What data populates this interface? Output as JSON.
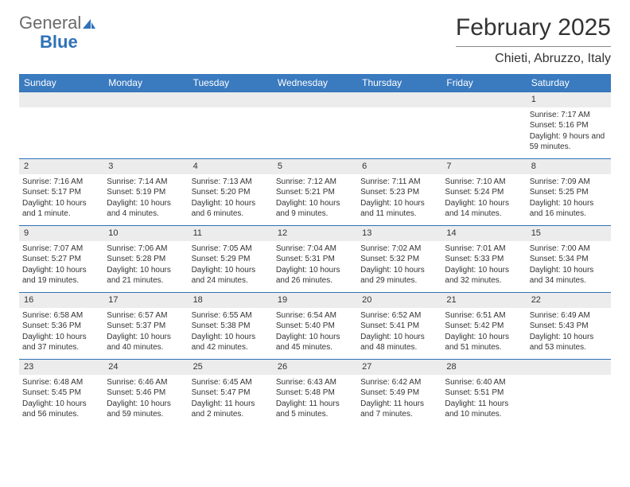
{
  "brand": {
    "word1": "General",
    "word2": "Blue"
  },
  "header": {
    "month_title": "February 2025",
    "location": "Chieti, Abruzzo, Italy"
  },
  "colors": {
    "header_bg": "#3a7abf",
    "header_text": "#ffffff",
    "day_stripe_bg": "#ececec",
    "row_divider": "#2f72b8",
    "logo_gray": "#6a6a6a",
    "logo_blue": "#2f72b8"
  },
  "weekdays": [
    "Sunday",
    "Monday",
    "Tuesday",
    "Wednesday",
    "Thursday",
    "Friday",
    "Saturday"
  ],
  "weeks": [
    [
      null,
      null,
      null,
      null,
      null,
      null,
      {
        "n": "1",
        "sunrise": "Sunrise: 7:17 AM",
        "sunset": "Sunset: 5:16 PM",
        "daylight": "Daylight: 9 hours and 59 minutes."
      }
    ],
    [
      {
        "n": "2",
        "sunrise": "Sunrise: 7:16 AM",
        "sunset": "Sunset: 5:17 PM",
        "daylight": "Daylight: 10 hours and 1 minute."
      },
      {
        "n": "3",
        "sunrise": "Sunrise: 7:14 AM",
        "sunset": "Sunset: 5:19 PM",
        "daylight": "Daylight: 10 hours and 4 minutes."
      },
      {
        "n": "4",
        "sunrise": "Sunrise: 7:13 AM",
        "sunset": "Sunset: 5:20 PM",
        "daylight": "Daylight: 10 hours and 6 minutes."
      },
      {
        "n": "5",
        "sunrise": "Sunrise: 7:12 AM",
        "sunset": "Sunset: 5:21 PM",
        "daylight": "Daylight: 10 hours and 9 minutes."
      },
      {
        "n": "6",
        "sunrise": "Sunrise: 7:11 AM",
        "sunset": "Sunset: 5:23 PM",
        "daylight": "Daylight: 10 hours and 11 minutes."
      },
      {
        "n": "7",
        "sunrise": "Sunrise: 7:10 AM",
        "sunset": "Sunset: 5:24 PM",
        "daylight": "Daylight: 10 hours and 14 minutes."
      },
      {
        "n": "8",
        "sunrise": "Sunrise: 7:09 AM",
        "sunset": "Sunset: 5:25 PM",
        "daylight": "Daylight: 10 hours and 16 minutes."
      }
    ],
    [
      {
        "n": "9",
        "sunrise": "Sunrise: 7:07 AM",
        "sunset": "Sunset: 5:27 PM",
        "daylight": "Daylight: 10 hours and 19 minutes."
      },
      {
        "n": "10",
        "sunrise": "Sunrise: 7:06 AM",
        "sunset": "Sunset: 5:28 PM",
        "daylight": "Daylight: 10 hours and 21 minutes."
      },
      {
        "n": "11",
        "sunrise": "Sunrise: 7:05 AM",
        "sunset": "Sunset: 5:29 PM",
        "daylight": "Daylight: 10 hours and 24 minutes."
      },
      {
        "n": "12",
        "sunrise": "Sunrise: 7:04 AM",
        "sunset": "Sunset: 5:31 PM",
        "daylight": "Daylight: 10 hours and 26 minutes."
      },
      {
        "n": "13",
        "sunrise": "Sunrise: 7:02 AM",
        "sunset": "Sunset: 5:32 PM",
        "daylight": "Daylight: 10 hours and 29 minutes."
      },
      {
        "n": "14",
        "sunrise": "Sunrise: 7:01 AM",
        "sunset": "Sunset: 5:33 PM",
        "daylight": "Daylight: 10 hours and 32 minutes."
      },
      {
        "n": "15",
        "sunrise": "Sunrise: 7:00 AM",
        "sunset": "Sunset: 5:34 PM",
        "daylight": "Daylight: 10 hours and 34 minutes."
      }
    ],
    [
      {
        "n": "16",
        "sunrise": "Sunrise: 6:58 AM",
        "sunset": "Sunset: 5:36 PM",
        "daylight": "Daylight: 10 hours and 37 minutes."
      },
      {
        "n": "17",
        "sunrise": "Sunrise: 6:57 AM",
        "sunset": "Sunset: 5:37 PM",
        "daylight": "Daylight: 10 hours and 40 minutes."
      },
      {
        "n": "18",
        "sunrise": "Sunrise: 6:55 AM",
        "sunset": "Sunset: 5:38 PM",
        "daylight": "Daylight: 10 hours and 42 minutes."
      },
      {
        "n": "19",
        "sunrise": "Sunrise: 6:54 AM",
        "sunset": "Sunset: 5:40 PM",
        "daylight": "Daylight: 10 hours and 45 minutes."
      },
      {
        "n": "20",
        "sunrise": "Sunrise: 6:52 AM",
        "sunset": "Sunset: 5:41 PM",
        "daylight": "Daylight: 10 hours and 48 minutes."
      },
      {
        "n": "21",
        "sunrise": "Sunrise: 6:51 AM",
        "sunset": "Sunset: 5:42 PM",
        "daylight": "Daylight: 10 hours and 51 minutes."
      },
      {
        "n": "22",
        "sunrise": "Sunrise: 6:49 AM",
        "sunset": "Sunset: 5:43 PM",
        "daylight": "Daylight: 10 hours and 53 minutes."
      }
    ],
    [
      {
        "n": "23",
        "sunrise": "Sunrise: 6:48 AM",
        "sunset": "Sunset: 5:45 PM",
        "daylight": "Daylight: 10 hours and 56 minutes."
      },
      {
        "n": "24",
        "sunrise": "Sunrise: 6:46 AM",
        "sunset": "Sunset: 5:46 PM",
        "daylight": "Daylight: 10 hours and 59 minutes."
      },
      {
        "n": "25",
        "sunrise": "Sunrise: 6:45 AM",
        "sunset": "Sunset: 5:47 PM",
        "daylight": "Daylight: 11 hours and 2 minutes."
      },
      {
        "n": "26",
        "sunrise": "Sunrise: 6:43 AM",
        "sunset": "Sunset: 5:48 PM",
        "daylight": "Daylight: 11 hours and 5 minutes."
      },
      {
        "n": "27",
        "sunrise": "Sunrise: 6:42 AM",
        "sunset": "Sunset: 5:49 PM",
        "daylight": "Daylight: 11 hours and 7 minutes."
      },
      {
        "n": "28",
        "sunrise": "Sunrise: 6:40 AM",
        "sunset": "Sunset: 5:51 PM",
        "daylight": "Daylight: 11 hours and 10 minutes."
      },
      null
    ]
  ]
}
